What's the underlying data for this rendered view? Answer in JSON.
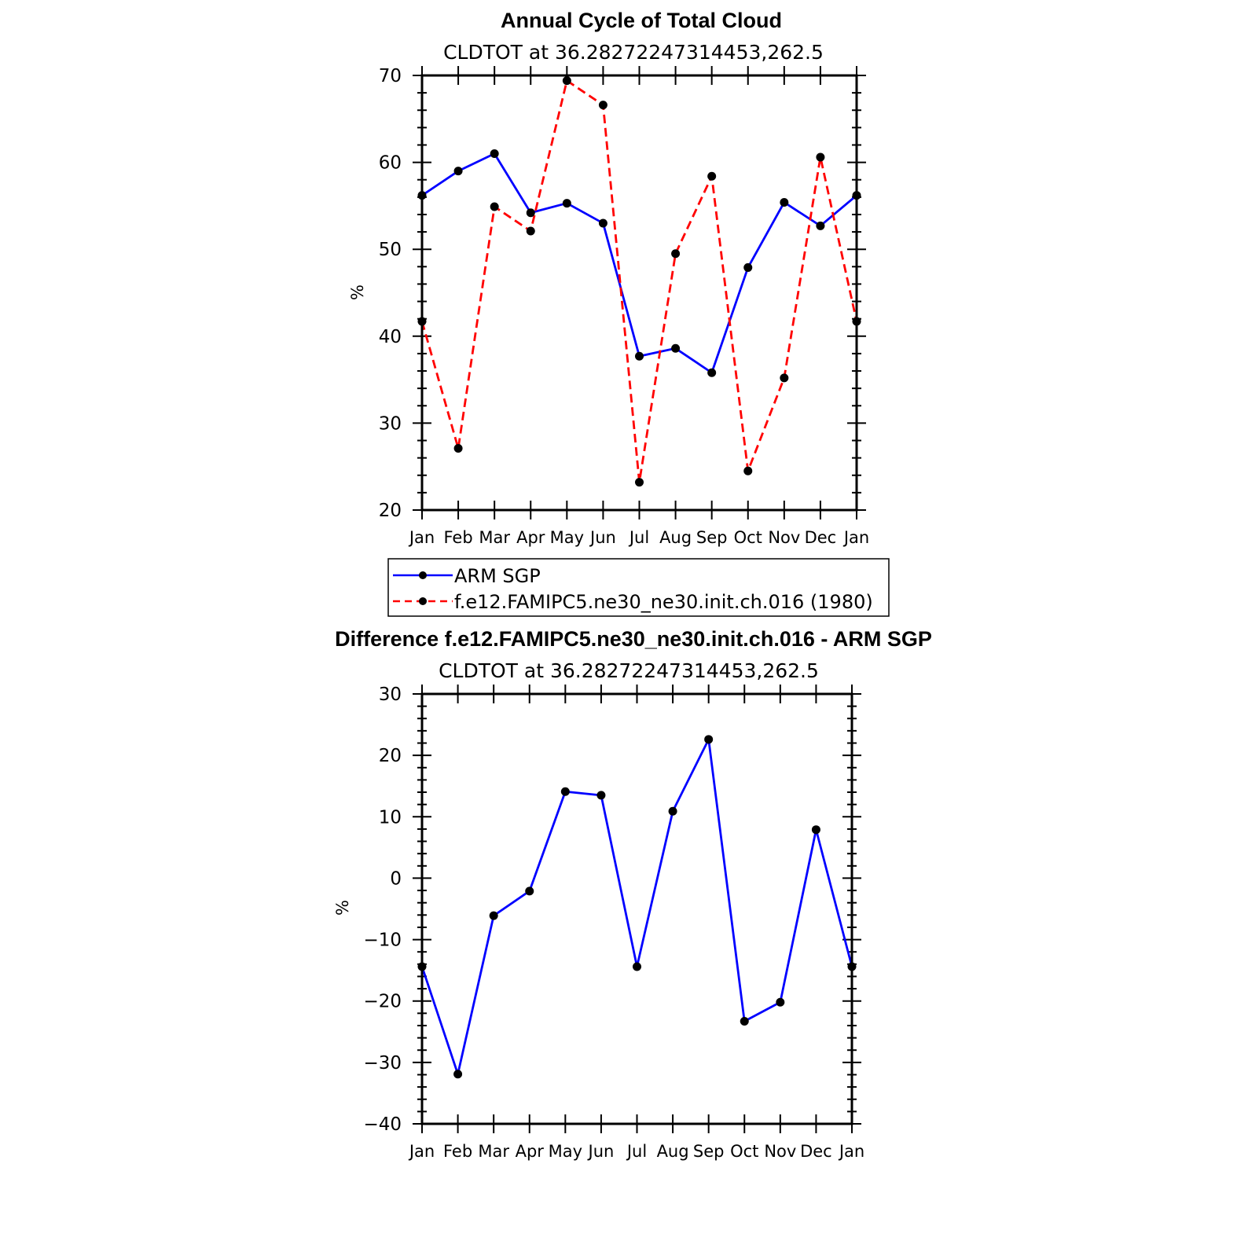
{
  "colors": {
    "obs": "#0000ff",
    "model": "#ff0000",
    "marker": "#000000",
    "axis": "#000000"
  },
  "chart_data": [
    {
      "type": "line",
      "title": "Annual Cycle of Total Cloud",
      "subtitle": "CLDTOT at 36.28272247314453,262.5",
      "xlabel": "",
      "ylabel": "%",
      "categories": [
        "Jan",
        "Feb",
        "Mar",
        "Apr",
        "May",
        "Jun",
        "Jul",
        "Aug",
        "Sep",
        "Oct",
        "Nov",
        "Dec",
        "Jan"
      ],
      "ylim": [
        20,
        70
      ],
      "yticks": [
        20,
        30,
        40,
        50,
        60,
        70
      ],
      "series": [
        {
          "name": "ARM SGP",
          "style": "solid",
          "color": "#0000ff",
          "values": [
            56.2,
            59.0,
            61.0,
            54.2,
            55.3,
            53.0,
            37.7,
            38.6,
            35.8,
            47.9,
            55.4,
            52.7,
            56.2
          ]
        },
        {
          "name": "f.e12.FAMIPC5.ne30_ne30.init.ch.016 (1980)",
          "style": "dashed",
          "color": "#ff0000",
          "values": [
            41.7,
            27.1,
            54.9,
            52.1,
            69.4,
            66.6,
            23.2,
            49.5,
            58.4,
            24.5,
            35.2,
            60.6,
            41.7
          ]
        }
      ],
      "legend": "below-plot"
    },
    {
      "type": "line",
      "title": "Difference f.e12.FAMIPC5.ne30_ne30.init.ch.016 - ARM SGP",
      "subtitle": "CLDTOT at 36.28272247314453,262.5",
      "xlabel": "",
      "ylabel": "%",
      "categories": [
        "Jan",
        "Feb",
        "Mar",
        "Apr",
        "May",
        "Jun",
        "Jul",
        "Aug",
        "Sep",
        "Oct",
        "Nov",
        "Dec",
        "Jan"
      ],
      "ylim": [
        -40,
        30
      ],
      "yticks": [
        -40,
        -30,
        -20,
        -10,
        0,
        10,
        20,
        30
      ],
      "ytick_labels": [
        "−40",
        "−30",
        "−20",
        "−10",
        "0",
        "10",
        "20",
        "30"
      ],
      "series": [
        {
          "name": "Difference",
          "style": "solid",
          "color": "#0000ff",
          "values": [
            -14.4,
            -31.9,
            -6.1,
            -2.1,
            14.1,
            13.5,
            -14.4,
            10.9,
            22.6,
            -23.3,
            -20.2,
            7.9,
            -14.4
          ]
        }
      ]
    }
  ]
}
